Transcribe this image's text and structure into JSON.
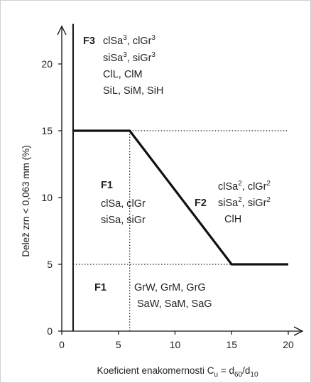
{
  "chart_data": {
    "type": "line",
    "xlabel_parts": [
      "Koeficient enakomernosti C",
      "u",
      " = d",
      "60",
      "/d",
      "10"
    ],
    "ylabel": "Delež zrn < 0,063 mm (%)",
    "xlim": [
      0,
      20
    ],
    "ylim": [
      0,
      23
    ],
    "xticks": [
      0,
      5,
      10,
      15,
      20
    ],
    "yticks": [
      0,
      5,
      10,
      15,
      20
    ],
    "grid": false,
    "boundary_line": {
      "x": [
        1,
        6,
        15,
        20
      ],
      "y": [
        15,
        15,
        5,
        5
      ]
    },
    "vertical_boundary": {
      "x": 1,
      "y": [
        0,
        23
      ]
    },
    "dotted_lines": [
      {
        "x": [
          6,
          20
        ],
        "y": [
          15,
          15
        ]
      },
      {
        "x": [
          1,
          15
        ],
        "y": [
          5,
          5
        ]
      },
      {
        "x": [
          6,
          6
        ],
        "y": [
          0,
          15
        ]
      }
    ],
    "zones": [
      {
        "tag": "F3",
        "lines": [
          [
            {
              "t": "clSa"
            },
            {
              "t": "3",
              "sup": true
            },
            {
              "t": ", clGr"
            },
            {
              "t": "3",
              "sup": true
            }
          ],
          [
            {
              "t": "siSa"
            },
            {
              "t": "3",
              "sup": true
            },
            {
              "t": ", siGr"
            },
            {
              "t": "3",
              "sup": true
            }
          ],
          [
            {
              "t": "ClL, ClM"
            }
          ],
          [
            {
              "t": "SiL, SiM, SiH"
            }
          ]
        ]
      },
      {
        "tag": "F1",
        "lines": [
          [
            {
              "t": "clSa, clGr"
            }
          ],
          [
            {
              "t": "siSa, siGr"
            }
          ]
        ]
      },
      {
        "tag": "F2",
        "lines": [
          [
            {
              "t": "clSa"
            },
            {
              "t": "2",
              "sup": true
            },
            {
              "t": ", clGr"
            },
            {
              "t": "2",
              "sup": true
            }
          ],
          [
            {
              "t": "siSa"
            },
            {
              "t": "2",
              "sup": true
            },
            {
              "t": ", siGr"
            },
            {
              "t": "2",
              "sup": true
            }
          ],
          [
            {
              "t": "ClH"
            }
          ]
        ]
      },
      {
        "tag": "F1",
        "lines": [
          [
            {
              "t": "GrW, GrM, GrG"
            }
          ],
          [
            {
              "t": "SaW, SaM, SaG"
            }
          ]
        ]
      }
    ]
  }
}
